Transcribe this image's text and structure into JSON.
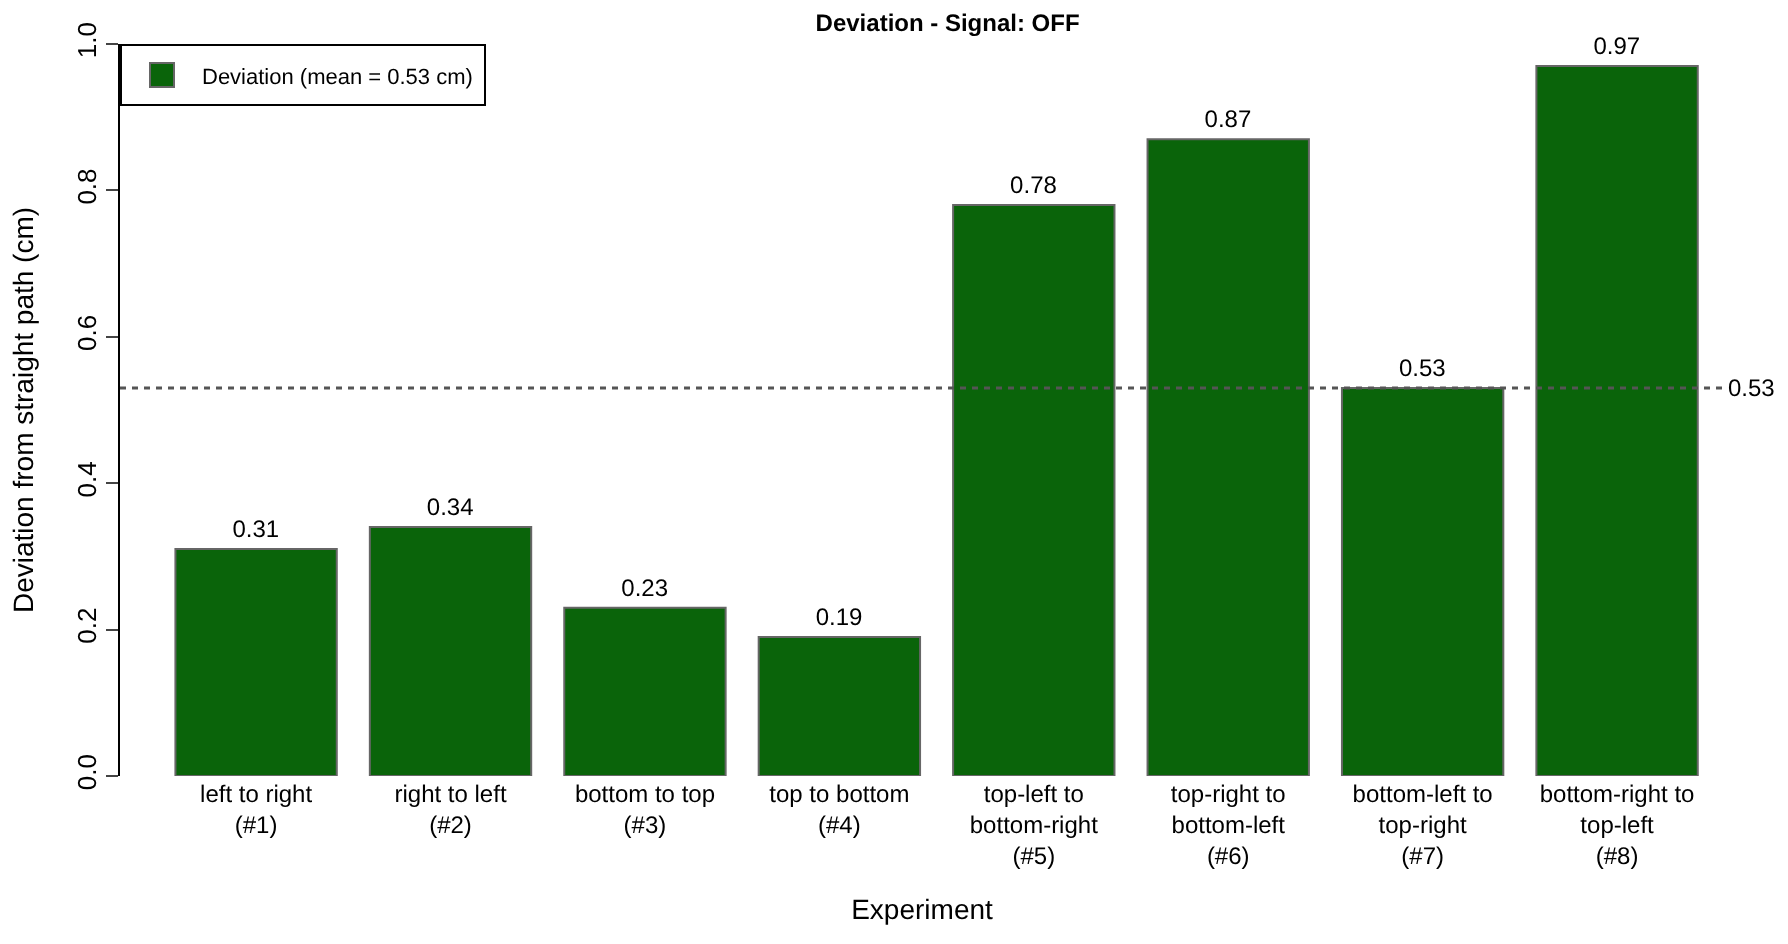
{
  "chart_data": {
    "type": "bar",
    "title": "Deviation - Signal: OFF",
    "xlabel": "Experiment",
    "ylabel": "Deviation from straight path (cm)",
    "categories": [
      "left to right\n(#1)",
      "right to left\n(#2)",
      "bottom to top\n(#3)",
      "top to bottom\n(#4)",
      "top-left to\nbottom-right\n(#5)",
      "top-right to\nbottom-left\n(#6)",
      "bottom-left to\ntop-right\n(#7)",
      "bottom-right to\ntop-left\n(#8)"
    ],
    "series": [
      {
        "name": "Deviation (mean = 0.53 cm)",
        "color": "#0a640a",
        "values": [
          0.31,
          0.34,
          0.23,
          0.19,
          0.78,
          0.87,
          0.53,
          0.97
        ]
      }
    ],
    "data_labels": true,
    "ylim": [
      0,
      1.0
    ],
    "yticks": [
      {
        "value": 0,
        "label": "0.0"
      },
      0.2,
      0.4,
      0.6,
      0.8,
      {
        "value": 1.0,
        "label": "1.0"
      }
    ],
    "ref_lines": [
      {
        "axis": "y",
        "value": 0.53,
        "label": "0.53",
        "color": "#555555",
        "line_style": "dotted"
      }
    ],
    "legend": "top left"
  }
}
